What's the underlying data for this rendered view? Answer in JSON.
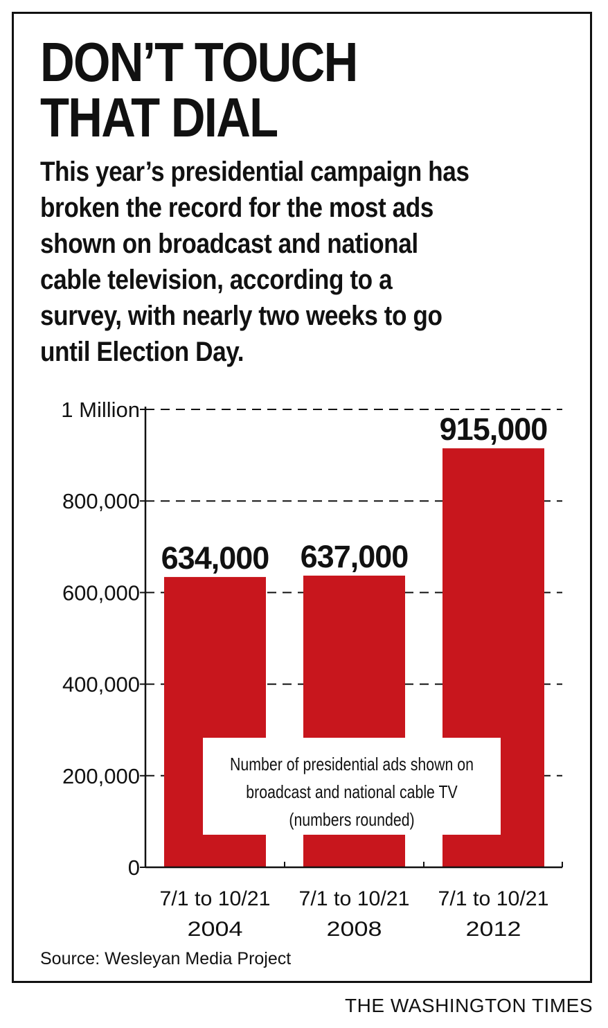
{
  "headline": {
    "line1": "DON’T TOUCH",
    "line2": "THAT DIAL"
  },
  "dek": {
    "lines": [
      "This year’s presidential campaign has",
      "broken the record for the most ads",
      "shown on broadcast and national",
      "cable television, according to a",
      "survey, with nearly two weeks to go",
      "until Election Day."
    ]
  },
  "chart_data": {
    "type": "bar",
    "categories": [
      [
        "7/1 to 10/21",
        "2004"
      ],
      [
        "7/1 to 10/21",
        "2008"
      ],
      [
        "7/1 to 10/21",
        "2012"
      ]
    ],
    "values": [
      634000,
      637000,
      915000
    ],
    "data_labels": [
      "634,000",
      "637,000",
      "915,000"
    ],
    "yticks": [
      0,
      200000,
      400000,
      600000,
      800000,
      1000000
    ],
    "ytick_labels": [
      "0",
      "200,000",
      "400,000",
      "600,000",
      "800,000",
      "1 Million"
    ],
    "ylim": [
      0,
      1000000
    ],
    "grid": "dashed-horizontal",
    "bar_color": "#c8161d",
    "annotation": [
      "Number of presidential ads shown on",
      "broadcast  and national cable TV",
      "(numbers rounded)"
    ]
  },
  "source": "Source: Wesleyan Media Project",
  "credit": "THE WASHINGTON TIMES"
}
